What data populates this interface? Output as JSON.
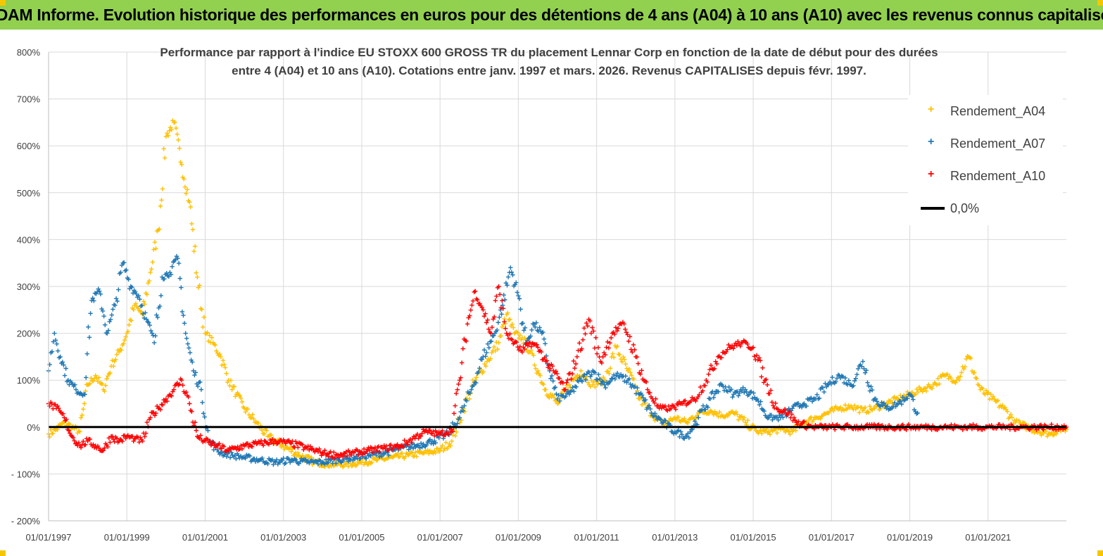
{
  "banner": {
    "title": "ADAM Informe. Evolution historique des performances en euros pour des détentions de 4 ans (A04) à 10 ans (A10) avec les revenus connus capitalisés"
  },
  "chart_data": {
    "type": "scatter",
    "title_line1": "Performance par rapport à l'indice EU STOXX 600 GROSS TR  du placement Lennar Corp en fonction de la date de début pour des durées",
    "title_line2": "entre 4 (A04) et 10 ans (A10). Cotations entre janv. 1997 et mars. 2026. Revenus CAPITALISES depuis févr. 1997.",
    "ylim": [
      -200,
      800
    ],
    "xlim": [
      1997.0,
      2023.0
    ],
    "y_ticks": [
      "- 200%",
      "- 100%",
      "0%",
      "100%",
      "200%",
      "300%",
      "400%",
      "500%",
      "600%",
      "700%",
      "800%"
    ],
    "x_ticks": [
      "01/01/1997",
      "01/01/1999",
      "01/01/2001",
      "01/01/2003",
      "01/01/2005",
      "01/01/2007",
      "01/01/2009",
      "01/01/2011",
      "01/01/2013",
      "01/01/2015",
      "01/01/2017",
      "01/01/2019",
      "01/01/2021"
    ],
    "legend": [
      {
        "name": "Rendement_A04",
        "color": "#ffc000",
        "marker": "plus"
      },
      {
        "name": "Rendement_A07",
        "color": "#1f77b4",
        "marker": "plus"
      },
      {
        "name": "Rendement_A10",
        "color": "#ff0000",
        "marker": "plus"
      },
      {
        "name": "0,0%",
        "color": "#000000",
        "marker": "line"
      }
    ],
    "series": [
      {
        "name": "Rendement_A04",
        "color": "#ffc000",
        "x": [
          1997.0,
          1997.2,
          1997.4,
          1997.6,
          1997.8,
          1998.0,
          1998.2,
          1998.4,
          1998.6,
          1998.8,
          1999.0,
          1999.2,
          1999.4,
          1999.6,
          1999.8,
          2000.0,
          2000.2,
          2000.4,
          2000.6,
          2000.8,
          2001.0,
          2001.2,
          2001.4,
          2001.6,
          2001.8,
          2002.0,
          2002.3,
          2002.6,
          2003.0,
          2003.4,
          2003.8,
          2004.2,
          2004.6,
          2005.0,
          2005.4,
          2005.8,
          2006.2,
          2006.6,
          2007.0,
          2007.3,
          2007.6,
          2007.9,
          2008.2,
          2008.5,
          2008.7,
          2008.9,
          2009.1,
          2009.3,
          2009.5,
          2009.7,
          2010.0,
          2010.3,
          2010.6,
          2010.9,
          2011.2,
          2011.5,
          2011.8,
          2012.1,
          2012.4,
          2012.7,
          2013.0,
          2013.3,
          2013.6,
          2013.9,
          2014.2,
          2014.5,
          2014.8,
          2015.1,
          2015.4,
          2015.7,
          2016.0,
          2016.3,
          2016.6,
          2016.9,
          2017.2,
          2017.5,
          2017.8,
          2018.1,
          2018.4,
          2018.7,
          2019.0,
          2019.3,
          2019.6,
          2019.9,
          2020.2,
          2020.5,
          2020.8,
          2021.1,
          2021.4,
          2021.7,
          2022.0,
          2022.3,
          2022.6,
          2022.8,
          2023.0
        ],
        "y": [
          -15,
          -5,
          10,
          0,
          -10,
          90,
          110,
          80,
          130,
          160,
          200,
          260,
          240,
          330,
          420,
          620,
          650,
          560,
          480,
          320,
          200,
          180,
          150,
          100,
          70,
          40,
          10,
          -20,
          -40,
          -60,
          -75,
          -80,
          -80,
          -75,
          -70,
          -65,
          -60,
          -55,
          -50,
          -30,
          40,
          100,
          140,
          180,
          240,
          200,
          190,
          160,
          120,
          80,
          50,
          90,
          120,
          90,
          100,
          170,
          120,
          60,
          30,
          5,
          20,
          10,
          30,
          35,
          25,
          30,
          10,
          -10,
          -10,
          -5,
          -10,
          10,
          20,
          30,
          40,
          45,
          35,
          40,
          50,
          60,
          70,
          80,
          90,
          110,
          100,
          150,
          80,
          60,
          40,
          10,
          0,
          -10,
          -15,
          -5,
          -5
        ]
      },
      {
        "name": "Rendement_A07",
        "color": "#1f77b4",
        "x": [
          1997.0,
          1997.15,
          1997.3,
          1997.5,
          1997.7,
          1997.9,
          1998.1,
          1998.3,
          1998.5,
          1998.7,
          1998.9,
          1999.1,
          1999.3,
          1999.5,
          1999.7,
          1999.9,
          2000.1,
          2000.3,
          2000.5,
          2000.7,
          2000.9,
          2001.1,
          2001.4,
          2001.7,
          2002.0,
          2002.4,
          2002.8,
          2003.2,
          2003.6,
          2004.0,
          2004.4,
          2004.8,
          2005.2,
          2005.6,
          2006.0,
          2006.4,
          2006.8,
          2007.2,
          2007.5,
          2007.8,
          2008.1,
          2008.4,
          2008.6,
          2008.8,
          2009.0,
          2009.2,
          2009.4,
          2009.6,
          2009.8,
          2010.0,
          2010.3,
          2010.6,
          2010.9,
          2011.2,
          2011.5,
          2011.8,
          2012.1,
          2012.4,
          2012.7,
          2013.0,
          2013.3,
          2013.6,
          2013.9,
          2014.2,
          2014.5,
          2014.8,
          2015.1,
          2015.4,
          2015.7,
          2016.0,
          2016.3,
          2016.6,
          2016.9,
          2017.2,
          2017.5,
          2017.8,
          2018.1,
          2018.4,
          2018.7,
          2019.0,
          2019.2
        ],
        "y": [
          120,
          200,
          150,
          100,
          80,
          70,
          270,
          290,
          200,
          260,
          350,
          300,
          280,
          230,
          180,
          320,
          330,
          360,
          200,
          120,
          80,
          -30,
          -55,
          -60,
          -65,
          -70,
          -75,
          -70,
          -75,
          -75,
          -70,
          -65,
          -60,
          -55,
          -45,
          -40,
          -30,
          -15,
          20,
          80,
          150,
          200,
          260,
          340,
          280,
          180,
          220,
          200,
          120,
          60,
          70,
          100,
          120,
          90,
          110,
          100,
          70,
          30,
          10,
          -10,
          -20,
          20,
          60,
          90,
          70,
          80,
          60,
          20,
          20,
          40,
          50,
          60,
          90,
          110,
          90,
          140,
          60,
          40,
          50,
          70,
          30
        ]
      },
      {
        "name": "Rendement_A10",
        "color": "#ff0000",
        "x": [
          1997.0,
          1997.2,
          1997.4,
          1997.6,
          1997.8,
          1998.0,
          1998.2,
          1998.4,
          1998.6,
          1998.8,
          1999.0,
          1999.2,
          1999.4,
          1999.6,
          1999.8,
          2000.0,
          2000.2,
          2000.4,
          2000.6,
          2000.8,
          2001.0,
          2001.3,
          2001.6,
          2002.0,
          2002.4,
          2002.8,
          2003.2,
          2003.6,
          2004.0,
          2004.4,
          2004.8,
          2005.2,
          2005.6,
          2006.0,
          2006.3,
          2006.6,
          2007.0,
          2007.3,
          2007.5,
          2007.7,
          2007.9,
          2008.1,
          2008.3,
          2008.5,
          2008.7,
          2008.9,
          2009.1,
          2009.3,
          2009.5,
          2009.7,
          2009.9,
          2010.2,
          2010.5,
          2010.8,
          2011.1,
          2011.4,
          2011.7,
          2012.0,
          2012.3,
          2012.6,
          2012.9,
          2013.2,
          2013.5,
          2013.8,
          2014.1,
          2014.4,
          2014.7,
          2015.0,
          2015.3,
          2015.6,
          2015.9,
          2016.1,
          2016.5,
          2017.0,
          2017.5,
          2018.0,
          2018.5,
          2019.0,
          2019.5,
          2020.0,
          2020.5,
          2021.0,
          2021.5,
          2022.0,
          2022.5,
          2023.0
        ],
        "y": [
          50,
          40,
          20,
          -20,
          -40,
          -30,
          -40,
          -50,
          -20,
          -30,
          -20,
          -25,
          -30,
          20,
          40,
          60,
          80,
          100,
          50,
          -20,
          -30,
          -40,
          -50,
          -40,
          -35,
          -30,
          -35,
          -45,
          -55,
          -60,
          -55,
          -50,
          -45,
          -40,
          -25,
          -10,
          -15,
          -5,
          100,
          220,
          290,
          250,
          200,
          300,
          200,
          180,
          160,
          180,
          170,
          140,
          120,
          80,
          150,
          230,
          140,
          200,
          220,
          150,
          80,
          40,
          40,
          50,
          60,
          100,
          150,
          170,
          180,
          170,
          100,
          40,
          30,
          10,
          0,
          0,
          0,
          0,
          0,
          0,
          0,
          0,
          0,
          0,
          0,
          0,
          0,
          0
        ]
      }
    ]
  }
}
